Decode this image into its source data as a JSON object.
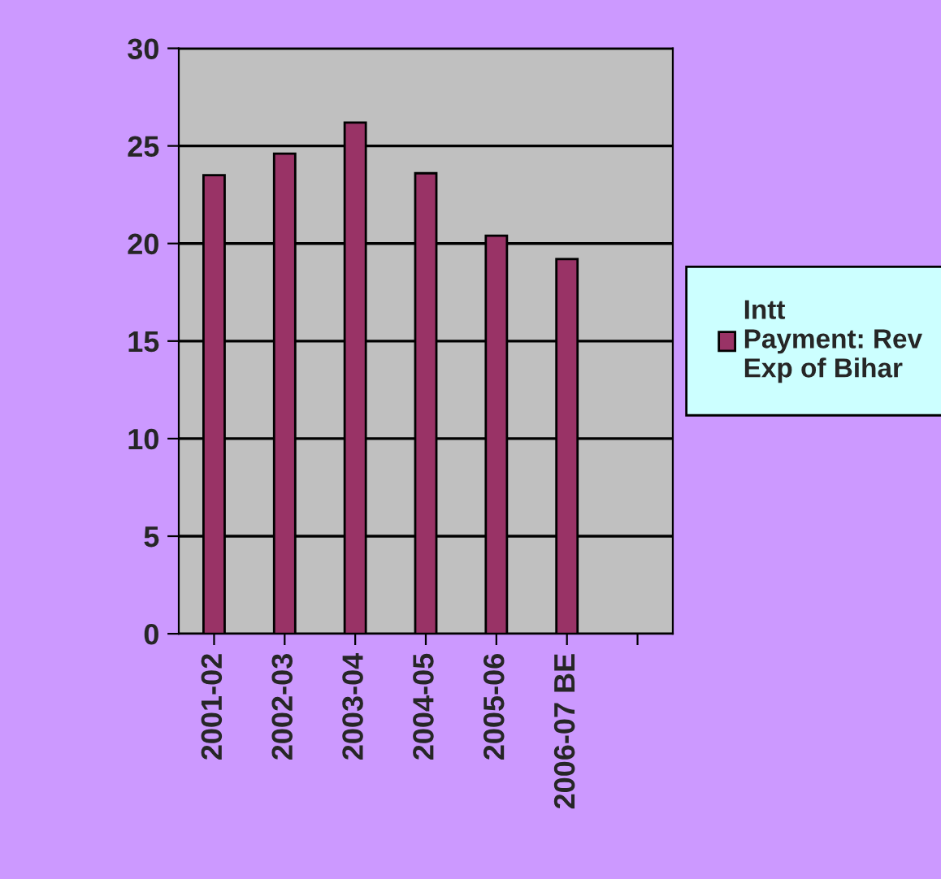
{
  "chart_data": {
    "type": "bar",
    "categories": [
      "2001-02",
      "2002-03",
      "2003-04",
      "2004-05",
      "2005-06",
      "2006-07 BE",
      null
    ],
    "series": [
      {
        "name": "Intt Payment: Rev Exp of Bihar",
        "color": "#993366",
        "values": [
          23.5,
          24.6,
          26.2,
          23.6,
          20.4,
          19.2,
          null
        ]
      }
    ],
    "ylim": [
      0,
      30
    ],
    "yticks": [
      0,
      5,
      10,
      15,
      20,
      25,
      30
    ],
    "grid": "y",
    "legend": "right"
  }
}
